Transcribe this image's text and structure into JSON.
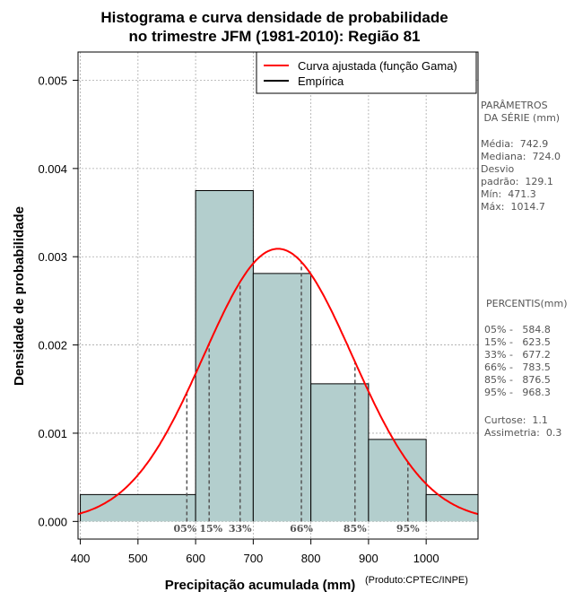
{
  "chart_data": {
    "type": "histogram",
    "title_line1": "Histograma e curva densidade de probabilidade",
    "title_line2": "no trimestre JFM (1981-2010): Região 81",
    "xlabel": "Precipitação acumulada (mm)",
    "ylabel": "Densidade de probabilidade",
    "xlim": [
      396,
      1090
    ],
    "ylim": [
      -0.0002,
      0.00532
    ],
    "x_ticks": [
      400,
      500,
      600,
      700,
      800,
      900,
      1000
    ],
    "y_ticks": [
      0.0,
      0.001,
      0.002,
      0.003,
      0.004,
      0.005
    ],
    "y_tick_labels": [
      "0.000",
      "0.001",
      "0.002",
      "0.003",
      "0.004",
      "0.005"
    ],
    "bins": [
      {
        "start": 400,
        "end": 600,
        "density": 0.000305
      },
      {
        "start": 600,
        "end": 700,
        "density": 0.00375
      },
      {
        "start": 700,
        "end": 800,
        "density": 0.00281
      },
      {
        "start": 800,
        "end": 900,
        "density": 0.00156
      },
      {
        "start": 900,
        "end": 1000,
        "density": 0.00093
      },
      {
        "start": 1000,
        "end": 1100,
        "density": 0.000305
      }
    ],
    "fitted_curve": {
      "name": "Curva ajustada (função Gama)",
      "mean": 742.9,
      "sd": 129.1,
      "color": "#ff0000"
    },
    "empirical": {
      "name": "Empírica",
      "color": "#000000"
    },
    "bar_fill": "#b3cecd",
    "percentile_marks": [
      {
        "label": "05%",
        "value": 584.8
      },
      {
        "label": "15%",
        "value": 623.5
      },
      {
        "label": "33%",
        "value": 677.2
      },
      {
        "label": "66%",
        "value": 783.5
      },
      {
        "label": "85%",
        "value": 876.5
      },
      {
        "label": "95%",
        "value": 968.3
      }
    ],
    "legend_position": "top-right"
  },
  "side_panel": {
    "params_title": "PARÂMETROS\n DA SÉRIE (mm)",
    "params": "Média:  742.9\nMediana:  724.0\nDesvio\npadrão:  129.1\nMín:  471.3\nMáx:  1014.7",
    "percentis_title": "PERCENTIS(mm)",
    "percentis": "05% -   584.8\n15% -   623.5\n33% -   677.2\n66% -   783.5\n85% -   876.5\n95% -   968.3",
    "stats": "Curtose:  1.1\nAssimetria:  0.3"
  },
  "credit": "(Produto:CPTEC/INPE)"
}
